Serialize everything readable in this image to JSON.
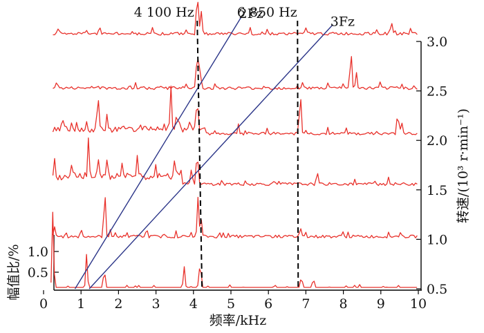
{
  "chart_data": {
    "type": "line",
    "subtype": "waterfall",
    "xlabel": "频率/kHz",
    "x_ticks": [
      "0",
      "1",
      "2",
      "3",
      "4",
      "5",
      "6",
      "7",
      "8",
      "9",
      "10"
    ],
    "xlim": [
      0,
      10
    ],
    "right_axis": {
      "label": "转速/(10³ r·min⁻¹)",
      "ticks": [
        "0.5",
        "1.0",
        "1.5",
        "2.0",
        "2.5",
        "3.0"
      ],
      "range": [
        0.5,
        3.0
      ]
    },
    "amplitude_axis": {
      "label": "幅值比/%",
      "ticks": [
        "0.5",
        "1.0"
      ]
    },
    "series": [
      {
        "speed": 0.5,
        "baseline": 0.5,
        "peaks": [
          [
            0.25,
            0.8
          ],
          [
            1.15,
            0.35
          ],
          [
            1.62,
            0.2
          ],
          [
            3.75,
            0.22
          ],
          [
            4.18,
            0.3
          ],
          [
            6.88,
            0.12
          ],
          [
            7.2,
            0.1
          ]
        ]
      },
      {
        "speed": 1.0,
        "baseline": 1.0,
        "peaks": [
          [
            0.3,
            0.1
          ],
          [
            1.0,
            0.08
          ],
          [
            1.63,
            0.5
          ],
          [
            1.78,
            0.08
          ],
          [
            2.75,
            0.08
          ],
          [
            4.12,
            0.4
          ],
          [
            4.2,
            0.2
          ],
          [
            6.85,
            0.1
          ],
          [
            8.0,
            0.05
          ]
        ]
      },
      {
        "speed": 1.5,
        "baseline": 1.53,
        "peaks": [
          [
            0.3,
            0.18
          ],
          [
            0.75,
            0.15
          ],
          [
            1.2,
            0.38
          ],
          [
            1.45,
            0.22
          ],
          [
            1.7,
            0.2
          ],
          [
            2.1,
            0.15
          ],
          [
            2.5,
            0.25
          ],
          [
            3.0,
            0.12
          ],
          [
            3.5,
            0.18
          ],
          [
            3.95,
            0.15
          ],
          [
            4.1,
            0.35
          ],
          [
            7.3,
            0.12
          ],
          [
            9.2,
            0.07
          ]
        ]
      },
      {
        "speed": 2.0,
        "baseline": 2.04,
        "peaks": [
          [
            0.5,
            0.1
          ],
          [
            1.45,
            0.4
          ],
          [
            1.7,
            0.12
          ],
          [
            3.4,
            0.45
          ],
          [
            3.55,
            0.2
          ],
          [
            4.1,
            0.35
          ],
          [
            5.2,
            0.1
          ],
          [
            6.85,
            0.45
          ],
          [
            9.45,
            0.25
          ],
          [
            9.55,
            0.12
          ]
        ]
      },
      {
        "speed": 2.5,
        "baseline": 2.5,
        "peaks": [
          [
            0.35,
            0.07
          ],
          [
            2.3,
            0.05
          ],
          [
            4.1,
            0.45
          ],
          [
            4.18,
            0.25
          ],
          [
            6.9,
            0.07
          ],
          [
            8.2,
            0.43
          ],
          [
            8.35,
            0.15
          ]
        ]
      },
      {
        "speed": 3.0,
        "baseline": 3.05,
        "peaks": [
          [
            0.4,
            0.05
          ],
          [
            1.5,
            0.08
          ],
          [
            4.1,
            0.5
          ],
          [
            4.2,
            0.25
          ],
          [
            7.0,
            0.05
          ],
          [
            9.3,
            0.1
          ]
        ]
      }
    ],
    "order_lines": [
      {
        "name": "2Fz",
        "from": [
          0.84,
          0.5
        ],
        "to": [
          5.28,
          3.25
        ]
      },
      {
        "name": "3Fz",
        "from": [
          1.22,
          0.5
        ],
        "to": [
          7.72,
          3.17
        ]
      }
    ],
    "markers": [
      {
        "label": "4 100 Hz",
        "x": 4.1
      },
      {
        "label": "6 850 Hz",
        "x": 6.85
      }
    ],
    "colors": {
      "traces": "#e8302a",
      "order_lines": "#2b3588",
      "markers": "#000000"
    }
  }
}
